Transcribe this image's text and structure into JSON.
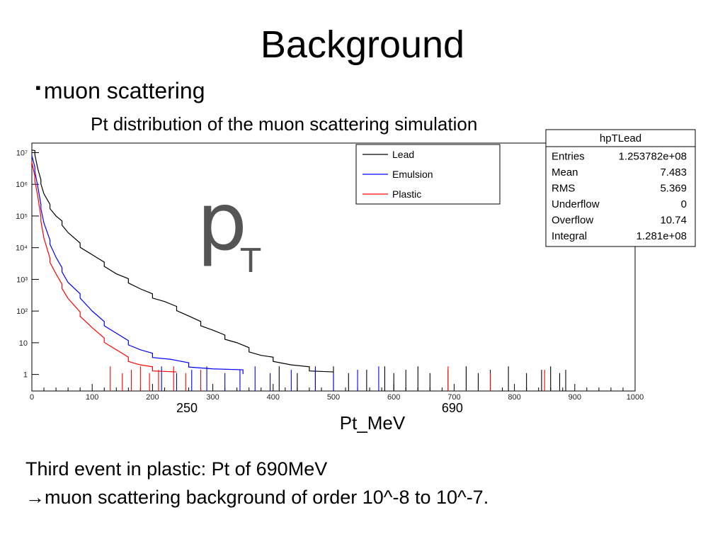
{
  "slide": {
    "title": "Background",
    "bullet_mark": "▪",
    "bullet": "muon scattering",
    "subtitle": "Pt distribution of the muon scattering simulation",
    "note_line1": "Third event in plastic: Pt of 690MeV",
    "note_line2_arrow": "→",
    "note_line2": "muon scattering background of  order 10^-8 to 10^-7."
  },
  "chart_data": {
    "type": "line",
    "title": "hpTLead",
    "big_label": "p",
    "big_label_sub": "T",
    "xlabel": "Pt_MeV",
    "xlim": [
      0,
      1000
    ],
    "ylim": [
      0.3,
      20000000
    ],
    "ylog": true,
    "x_ticks": [
      "0",
      "100",
      "200",
      "300",
      "400",
      "500",
      "600",
      "700",
      "800",
      "900",
      "1000"
    ],
    "y_ticks": [
      {
        "value": 1,
        "label": "1"
      },
      {
        "value": 10,
        "label": "10"
      },
      {
        "value": 100,
        "label": "10²"
      },
      {
        "value": 1000,
        "label": "10³"
      },
      {
        "value": 10000,
        "label": "10⁴"
      },
      {
        "value": 100000,
        "label": "10⁵"
      },
      {
        "value": 1000000,
        "label": "10⁶"
      },
      {
        "value": 10000000,
        "label": "10⁷"
      }
    ],
    "annotations": [
      {
        "x": 250,
        "text": "250"
      },
      {
        "x": 690,
        "text": "690"
      }
    ],
    "legend_position": "top-center",
    "series": [
      {
        "name": "Lead",
        "color": "#000000",
        "points": [
          [
            0,
            12000000
          ],
          [
            5,
            10000000
          ],
          [
            10,
            3000000
          ],
          [
            15,
            1200000
          ],
          [
            20,
            500000
          ],
          [
            30,
            200000
          ],
          [
            40,
            100000
          ],
          [
            50,
            60000
          ],
          [
            60,
            30000
          ],
          [
            80,
            12000
          ],
          [
            100,
            6000
          ],
          [
            120,
            3000
          ],
          [
            140,
            1500
          ],
          [
            160,
            900
          ],
          [
            180,
            500
          ],
          [
            200,
            300
          ],
          [
            220,
            200
          ],
          [
            240,
            120
          ],
          [
            260,
            70
          ],
          [
            280,
            40
          ],
          [
            300,
            25
          ],
          [
            320,
            15
          ],
          [
            340,
            10
          ],
          [
            360,
            6
          ],
          [
            380,
            4
          ],
          [
            400,
            3
          ],
          [
            430,
            2
          ],
          [
            460,
            1.5
          ],
          [
            500,
            1.2
          ]
        ]
      },
      {
        "name": "Emulsion",
        "color": "#0000ff",
        "points": [
          [
            0,
            8000000
          ],
          [
            5,
            3000000
          ],
          [
            10,
            800000
          ],
          [
            15,
            200000
          ],
          [
            20,
            60000
          ],
          [
            30,
            15000
          ],
          [
            40,
            5000
          ],
          [
            50,
            2000
          ],
          [
            60,
            800
          ],
          [
            80,
            300
          ],
          [
            100,
            100
          ],
          [
            120,
            40
          ],
          [
            140,
            20
          ],
          [
            160,
            10
          ],
          [
            180,
            6
          ],
          [
            200,
            4
          ],
          [
            230,
            3
          ],
          [
            260,
            2
          ],
          [
            300,
            1.5
          ],
          [
            350,
            1.2
          ]
        ]
      },
      {
        "name": "Plastic",
        "color": "#ff0000",
        "points": [
          [
            0,
            5000000
          ],
          [
            5,
            1500000
          ],
          [
            10,
            400000
          ],
          [
            15,
            80000
          ],
          [
            20,
            20000
          ],
          [
            30,
            4000
          ],
          [
            40,
            1500
          ],
          [
            50,
            600
          ],
          [
            60,
            250
          ],
          [
            80,
            80
          ],
          [
            100,
            30
          ],
          [
            120,
            12
          ],
          [
            140,
            6
          ],
          [
            160,
            3
          ],
          [
            180,
            2
          ],
          [
            200,
            1.5
          ],
          [
            240,
            1.2
          ]
        ]
      }
    ],
    "spikes": [
      {
        "series": "Lead",
        "x": [
          410,
          440,
          470,
          500,
          525,
          555,
          585,
          600,
          620,
          640,
          660,
          690,
          720,
          740,
          760,
          790,
          820,
          845,
          860,
          875,
          885
        ]
      },
      {
        "series": "Emulsion",
        "x": [
          215,
          240,
          265,
          290,
          320,
          345,
          370,
          395,
          430,
          470,
          500,
          540,
          575
        ]
      },
      {
        "series": "Plastic",
        "x": [
          130,
          150,
          165,
          180,
          195,
          210,
          235,
          255,
          280,
          690,
          760,
          850
        ]
      }
    ],
    "stats": {
      "title": "hpTLead",
      "rows": [
        {
          "label": "Entries",
          "value": "1.253782e+08"
        },
        {
          "label": "Mean",
          "value": "7.483"
        },
        {
          "label": "RMS",
          "value": "5.369"
        },
        {
          "label": "Underflow",
          "value": "0"
        },
        {
          "label": "Overflow",
          "value": "10.74"
        },
        {
          "label": "Integral",
          "value": "1.281e+08"
        }
      ]
    }
  }
}
